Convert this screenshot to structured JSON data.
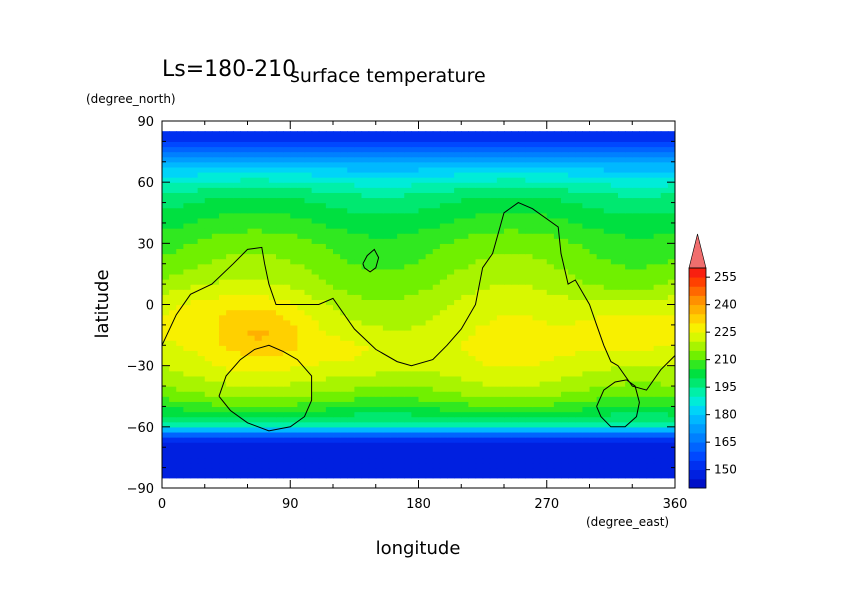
{
  "chart_data": {
    "type": "heatmap",
    "title": "surface temperature",
    "subtitle": "Ls=180-210",
    "xlabel": "longitude",
    "ylabel": "latitude",
    "xunit": "(degree_east)",
    "yunit": "(degree_north)",
    "xlim": [
      0,
      360
    ],
    "ylim": [
      -90,
      90
    ],
    "data_extent_lat": [
      -85,
      85
    ],
    "xticks": [
      0,
      90,
      180,
      270,
      360
    ],
    "yticks": [
      -90,
      -60,
      -30,
      0,
      30,
      60,
      90
    ],
    "colorbar": {
      "labels": [
        150,
        165,
        180,
        195,
        210,
        225,
        240,
        255
      ],
      "boundaries": [
        140,
        145,
        150,
        155,
        160,
        165,
        170,
        175,
        180,
        185,
        190,
        195,
        200,
        205,
        210,
        215,
        220,
        225,
        230,
        235,
        240,
        245,
        250,
        255,
        260
      ],
      "colors": [
        "#0010c8",
        "#0020e0",
        "#0030f0",
        "#0048ff",
        "#0064ff",
        "#0080ff",
        "#009cff",
        "#00b8ff",
        "#00d4f8",
        "#00ecd8",
        "#00f0a8",
        "#00e870",
        "#00e040",
        "#30e820",
        "#70f000",
        "#a8f400",
        "#d8f800",
        "#f8f000",
        "#ffd000",
        "#ffb000",
        "#ff9000",
        "#ff6800",
        "#ff4000",
        "#f82010"
      ],
      "extend_max_color": "#f06e6e"
    },
    "latitude_profile": {
      "lat": [
        -85,
        -75,
        -67,
        -63,
        -60,
        -55,
        -50,
        -45,
        -40,
        -30,
        -20,
        -10,
        0,
        10,
        20,
        30,
        40,
        50,
        55,
        60,
        65,
        70,
        75,
        80,
        85
      ],
      "temperature": [
        145,
        146,
        150,
        168,
        188,
        200,
        207,
        213,
        217,
        222,
        224,
        222,
        220,
        216,
        213,
        210,
        205,
        200,
        196,
        190,
        183,
        175,
        165,
        156,
        150
      ]
    },
    "warm_regions": [
      {
        "lon": 70,
        "lat": -12,
        "temperature": 231
      },
      {
        "lon": 140,
        "lat": -25,
        "temperature": 228
      },
      {
        "lon": 325,
        "lat": -12,
        "temperature": 232
      },
      {
        "lon": 15,
        "lat": 0,
        "temperature": 225
      }
    ],
    "contours": [
      {
        "name": "topography-line",
        "lon": [
          0,
          10,
          20,
          35,
          50,
          60,
          70,
          72,
          75,
          80,
          90,
          100,
          110,
          120,
          135,
          150,
          165,
          175,
          190,
          200,
          210,
          220,
          225,
          232,
          240,
          250,
          260,
          270,
          278,
          280,
          285,
          290,
          300,
          305,
          310,
          315,
          320,
          325,
          330,
          340,
          350,
          360
        ],
        "lat": [
          -20,
          -5,
          5,
          10,
          20,
          27,
          28,
          20,
          10,
          0,
          0,
          0,
          0,
          3,
          -12,
          -22,
          -28,
          -30,
          -27,
          -20,
          -12,
          0,
          18,
          25,
          45,
          50,
          47,
          42,
          38,
          25,
          10,
          12,
          0,
          -10,
          -20,
          -28,
          -30,
          -35,
          -40,
          -42,
          -32,
          -25
        ]
      },
      {
        "name": "hellas-basin",
        "lon": [
          40,
          45,
          55,
          65,
          75,
          85,
          95,
          105,
          105,
          100,
          90,
          75,
          60,
          48,
          40
        ],
        "lat": [
          -45,
          -35,
          -27,
          -22,
          -20,
          -23,
          -27,
          -35,
          -47,
          -55,
          -60,
          -62,
          -58,
          -52,
          -45
        ]
      },
      {
        "name": "argyre-basin",
        "lon": [
          305,
          310,
          318,
          326,
          332,
          335,
          333,
          325,
          315,
          308,
          305
        ],
        "lat": [
          -50,
          -42,
          -38,
          -37,
          -40,
          -48,
          -55,
          -60,
          -60,
          -55,
          -50
        ]
      },
      {
        "name": "elysium-line",
        "lon": [
          141,
          144,
          149,
          152,
          150,
          146,
          142,
          141
        ],
        "lat": [
          20,
          24,
          27,
          23,
          18,
          16,
          18,
          20
        ]
      }
    ]
  }
}
